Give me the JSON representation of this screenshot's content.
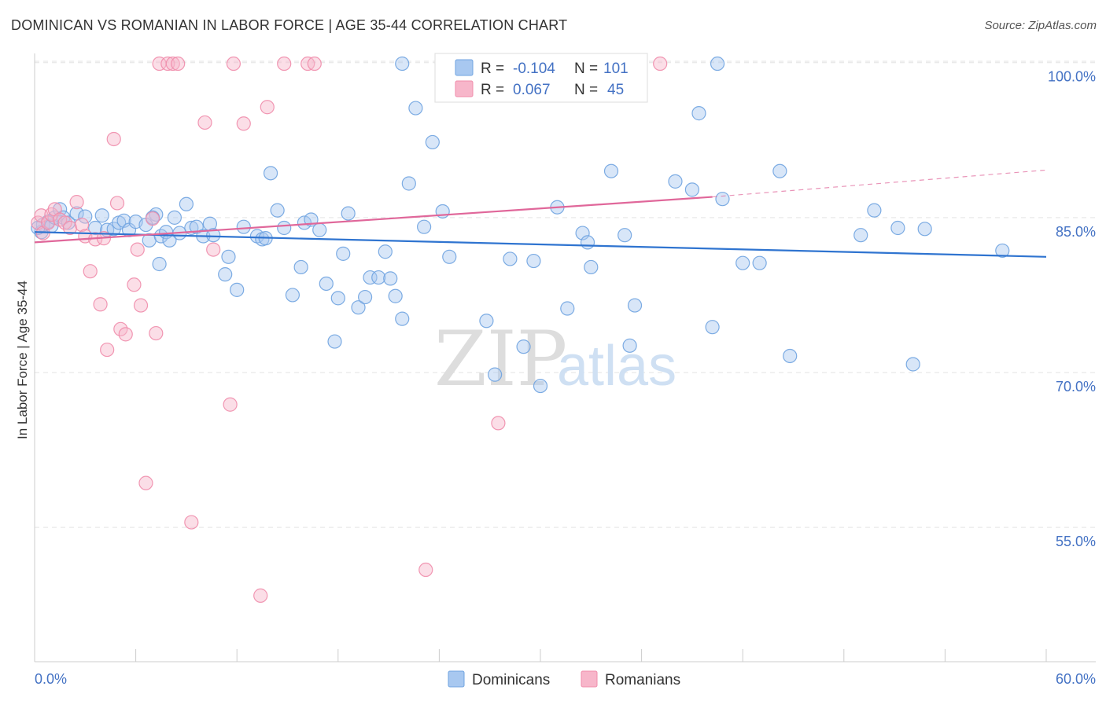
{
  "title": "DOMINICAN VS ROMANIAN IN LABOR FORCE | AGE 35-44 CORRELATION CHART",
  "source": "Source: ZipAtlas.com",
  "watermark": {
    "zip": "ZIP",
    "atlas": "atlas"
  },
  "legend_box": {
    "rows": [
      {
        "r_label": "R = ",
        "r_value": "-0.104",
        "n_label": "N = ",
        "n_value": "101",
        "color": "#a8c8f0"
      },
      {
        "r_label": "R = ",
        "r_value": "0.067",
        "n_label": "N = ",
        "n_value": "45",
        "color": "#f7b6ca"
      }
    ]
  },
  "bottom_legend": [
    {
      "label": "Dominicans",
      "color": "#a8c8f0"
    },
    {
      "label": "Romanians",
      "color": "#f7b6ca"
    }
  ],
  "chart_data": {
    "type": "scatter",
    "xlabel": "",
    "ylabel": "In Labor Force | Age 35-44",
    "xlim": [
      0,
      60
    ],
    "ylim": [
      42,
      101.5
    ],
    "x_tick_labels": [
      "0.0%",
      "60.0%"
    ],
    "y_ticks": [
      {
        "value": 100,
        "label": "100.0%"
      },
      {
        "value": 85,
        "label": "85.0%"
      },
      {
        "value": 70,
        "label": "70.0%"
      },
      {
        "value": 55,
        "label": "55.0%"
      }
    ],
    "grid": "horizontal dashed",
    "series": [
      {
        "name": "Dominicans",
        "color": "#6fa3e0",
        "fill": "#a8c8f0",
        "trend": {
          "x": [
            0,
            60
          ],
          "y": [
            83.6,
            81.2
          ],
          "color": "#2f74d0"
        },
        "points": [
          [
            0.4,
            83.6
          ],
          [
            0.5,
            84.3
          ],
          [
            0.8,
            84.6
          ],
          [
            1.0,
            84.2
          ],
          [
            1.2,
            85.0
          ],
          [
            1.5,
            85.8
          ],
          [
            1.7,
            85.0
          ],
          [
            2.0,
            84.5
          ],
          [
            2.5,
            85.4
          ],
          [
            3.0,
            85.1
          ],
          [
            3.6,
            84.0
          ],
          [
            4.0,
            85.2
          ],
          [
            4.3,
            83.8
          ],
          [
            4.7,
            83.9
          ],
          [
            5.0,
            84.5
          ],
          [
            5.3,
            84.7
          ],
          [
            5.6,
            83.8
          ],
          [
            6.0,
            84.6
          ],
          [
            6.6,
            84.3
          ],
          [
            6.8,
            82.8
          ],
          [
            7.2,
            85.3
          ],
          [
            7.0,
            85.0
          ],
          [
            7.4,
            80.5
          ],
          [
            7.5,
            83.2
          ],
          [
            7.8,
            83.6
          ],
          [
            8.0,
            82.8
          ],
          [
            8.3,
            85.0
          ],
          [
            8.6,
            83.5
          ],
          [
            9.0,
            86.3
          ],
          [
            9.3,
            84.0
          ],
          [
            9.6,
            84.1
          ],
          [
            10.0,
            83.2
          ],
          [
            10.4,
            84.4
          ],
          [
            10.6,
            83.3
          ],
          [
            11.3,
            79.5
          ],
          [
            11.5,
            81.2
          ],
          [
            12.0,
            78.0
          ],
          [
            12.4,
            84.1
          ],
          [
            13.2,
            83.2
          ],
          [
            13.5,
            82.9
          ],
          [
            13.7,
            83.0
          ],
          [
            14.0,
            89.3
          ],
          [
            14.4,
            85.7
          ],
          [
            14.8,
            84.0
          ],
          [
            15.3,
            77.5
          ],
          [
            15.8,
            80.2
          ],
          [
            16.0,
            84.5
          ],
          [
            16.4,
            84.8
          ],
          [
            16.9,
            83.8
          ],
          [
            17.3,
            78.6
          ],
          [
            17.8,
            73.0
          ],
          [
            18.0,
            77.2
          ],
          [
            18.3,
            81.5
          ],
          [
            18.6,
            85.4
          ],
          [
            19.2,
            76.3
          ],
          [
            19.6,
            77.3
          ],
          [
            19.9,
            79.2
          ],
          [
            20.4,
            79.2
          ],
          [
            20.8,
            81.7
          ],
          [
            21.1,
            79.1
          ],
          [
            21.4,
            77.4
          ],
          [
            21.8,
            75.2
          ],
          [
            22.2,
            88.3
          ],
          [
            23.1,
            84.1
          ],
          [
            23.6,
            92.3
          ],
          [
            24.2,
            85.6
          ],
          [
            24.6,
            81.2
          ],
          [
            26.8,
            75.0
          ],
          [
            27.3,
            69.8
          ],
          [
            28.2,
            81.0
          ],
          [
            29.0,
            72.5
          ],
          [
            29.6,
            80.8
          ],
          [
            30.0,
            68.7
          ],
          [
            31.0,
            86.0
          ],
          [
            31.6,
            76.2
          ],
          [
            32.5,
            83.5
          ],
          [
            32.8,
            82.6
          ],
          [
            33.0,
            80.2
          ],
          [
            34.2,
            89.5
          ],
          [
            35.0,
            83.3
          ],
          [
            35.3,
            72.6
          ],
          [
            35.6,
            76.5
          ],
          [
            38.0,
            88.5
          ],
          [
            39.0,
            87.7
          ],
          [
            39.4,
            95.1
          ],
          [
            40.2,
            74.4
          ],
          [
            40.8,
            86.8
          ],
          [
            42.0,
            80.6
          ],
          [
            43.0,
            80.6
          ],
          [
            44.2,
            89.5
          ],
          [
            44.8,
            71.6
          ],
          [
            49.0,
            83.3
          ],
          [
            49.8,
            85.7
          ],
          [
            51.2,
            84.0
          ],
          [
            52.1,
            70.8
          ],
          [
            52.8,
            83.9
          ],
          [
            57.4,
            81.8
          ],
          [
            21.8,
            99.9
          ],
          [
            22.6,
            95.6
          ],
          [
            40.5,
            99.9
          ],
          [
            0.2,
            84.0
          ]
        ]
      },
      {
        "name": "Romanians",
        "color": "#f08cab",
        "fill": "#f7b6ca",
        "trend": {
          "x": [
            0,
            40.2
          ],
          "y": [
            82.6,
            87.0
          ],
          "color": "#e0679a"
        },
        "trend_ext": {
          "x": [
            40.2,
            60
          ],
          "y": [
            87.0,
            89.6
          ]
        },
        "points": [
          [
            0.2,
            84.5
          ],
          [
            0.4,
            85.2
          ],
          [
            0.5,
            83.5
          ],
          [
            0.8,
            84.5
          ],
          [
            1.0,
            85.3
          ],
          [
            1.2,
            85.8
          ],
          [
            1.5,
            84.8
          ],
          [
            1.8,
            84.5
          ],
          [
            2.1,
            84.0
          ],
          [
            2.5,
            86.5
          ],
          [
            2.8,
            84.3
          ],
          [
            3.0,
            83.2
          ],
          [
            3.3,
            79.8
          ],
          [
            3.6,
            82.9
          ],
          [
            3.9,
            76.6
          ],
          [
            4.1,
            83.0
          ],
          [
            4.3,
            72.2
          ],
          [
            4.7,
            92.6
          ],
          [
            4.9,
            86.4
          ],
          [
            5.1,
            74.2
          ],
          [
            5.4,
            73.7
          ],
          [
            5.9,
            78.5
          ],
          [
            6.1,
            81.9
          ],
          [
            6.3,
            76.5
          ],
          [
            6.6,
            59.3
          ],
          [
            7.0,
            84.9
          ],
          [
            7.2,
            73.8
          ],
          [
            7.4,
            99.9
          ],
          [
            7.9,
            99.9
          ],
          [
            8.2,
            99.9
          ],
          [
            8.5,
            99.9
          ],
          [
            9.3,
            55.5
          ],
          [
            10.1,
            94.2
          ],
          [
            10.6,
            81.9
          ],
          [
            11.6,
            66.9
          ],
          [
            11.8,
            99.9
          ],
          [
            12.4,
            94.1
          ],
          [
            13.4,
            48.4
          ],
          [
            13.8,
            95.7
          ],
          [
            14.8,
            99.9
          ],
          [
            16.2,
            99.9
          ],
          [
            16.6,
            99.9
          ],
          [
            23.2,
            50.9
          ],
          [
            27.5,
            65.1
          ],
          [
            37.1,
            99.9
          ]
        ]
      }
    ]
  }
}
